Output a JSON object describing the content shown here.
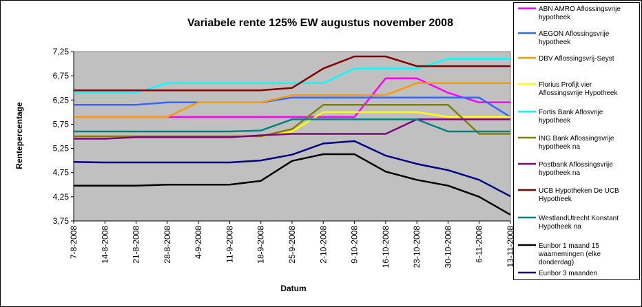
{
  "chart_data": {
    "type": "line",
    "title": "Variabele  rente 125% EW augustus november 2008",
    "xlabel": "Datum",
    "ylabel": "Rentepercentage",
    "ylim": [
      3.75,
      7.25
    ],
    "yticks": [
      "3,75",
      "4,25",
      "4,75",
      "5,25",
      "5,75",
      "6,25",
      "6,75",
      "7,25"
    ],
    "grid": false,
    "plot_background": "#c0c0c0",
    "legend_position": "right",
    "categories": [
      "7-8-2008",
      "14-8-2008",
      "21-8-2008",
      "28-8-2008",
      "4-9-2008",
      "11-9-2008",
      "18-9-2008",
      "25-9-2008",
      "2-10-2008",
      "9-10-2008",
      "16-10-2008",
      "23-10-2008",
      "30-10-2008",
      "6-11-2008",
      "13-11-2008"
    ],
    "series": [
      {
        "name": "ABN AMRO Aflossingsvrije hypotheek",
        "color": "#ff00ff",
        "values": [
          5.9,
          5.9,
          5.9,
          5.9,
          5.9,
          5.9,
          5.9,
          5.9,
          5.9,
          5.9,
          6.7,
          6.7,
          6.4,
          6.2,
          6.2
        ]
      },
      {
        "name": "AEGON Aflossingsvrije hypotheek",
        "color": "#3366ff",
        "values": [
          6.15,
          6.15,
          6.15,
          6.2,
          6.2,
          6.2,
          6.2,
          6.3,
          6.3,
          6.3,
          6.3,
          6.3,
          6.3,
          6.3,
          5.9
        ]
      },
      {
        "name": "DBV Aflossingsvrij-Seyst",
        "color": "#ff9900",
        "values": [
          5.9,
          5.9,
          5.9,
          5.9,
          6.2,
          6.2,
          6.2,
          6.35,
          6.35,
          6.35,
          6.35,
          6.6,
          6.6,
          6.6,
          6.6
        ]
      },
      {
        "name": "Florius Profijt vier Aflossingsvrije Hypotheek",
        "color": "#ffff00",
        "values": [
          5.5,
          5.5,
          5.5,
          5.5,
          5.5,
          5.5,
          5.5,
          5.6,
          6.0,
          6.0,
          6.0,
          6.0,
          5.9,
          5.9,
          5.9
        ]
      },
      {
        "name": "Fortis Bank Aflosvrije hypotheek",
        "color": "#00ffff",
        "values": [
          6.4,
          6.4,
          6.4,
          6.6,
          6.6,
          6.6,
          6.6,
          6.6,
          6.6,
          6.9,
          6.9,
          6.9,
          7.1,
          7.1,
          7.1
        ]
      },
      {
        "name": "ING Bank Aflossingsvrije hypotheek na",
        "color": "#808000",
        "values": [
          5.5,
          5.5,
          5.5,
          5.5,
          5.5,
          5.5,
          5.5,
          5.65,
          6.15,
          6.15,
          6.15,
          6.15,
          6.15,
          5.55,
          5.55
        ]
      },
      {
        "name": "Postbank Aflossingsvrije hypotheek na",
        "color": "#800080",
        "values": [
          5.45,
          5.45,
          5.48,
          5.48,
          5.48,
          5.48,
          5.52,
          5.55,
          5.55,
          5.55,
          5.55,
          5.85,
          5.85,
          5.85,
          5.85
        ]
      },
      {
        "name": "UCB Hypotheken De UCB Hypotheek",
        "color": "#800000",
        "values": [
          6.45,
          6.45,
          6.45,
          6.45,
          6.45,
          6.45,
          6.45,
          6.5,
          6.9,
          7.15,
          7.15,
          6.95,
          6.95,
          6.95,
          6.95
        ]
      },
      {
        "name": "WestlandUtrecht Konstant Hypotheek na",
        "color": "#008080",
        "values": [
          5.6,
          5.6,
          5.6,
          5.6,
          5.6,
          5.6,
          5.62,
          5.85,
          5.85,
          5.85,
          5.85,
          5.85,
          5.6,
          5.6,
          5.6
        ]
      },
      {
        "name": "Euribor 1 maand 15 waarnemingen (elke donderdag)",
        "color": "#000000",
        "values": [
          4.48,
          4.48,
          4.48,
          4.5,
          4.5,
          4.5,
          4.58,
          4.99,
          5.13,
          5.13,
          4.77,
          4.6,
          4.48,
          4.25,
          3.88
        ]
      },
      {
        "name": "Euribor 3 maanden",
        "color": "#000080",
        "values": [
          4.97,
          4.96,
          4.96,
          4.96,
          4.96,
          4.96,
          5.0,
          5.12,
          5.35,
          5.4,
          5.1,
          4.93,
          4.8,
          4.6,
          4.26
        ]
      }
    ]
  }
}
